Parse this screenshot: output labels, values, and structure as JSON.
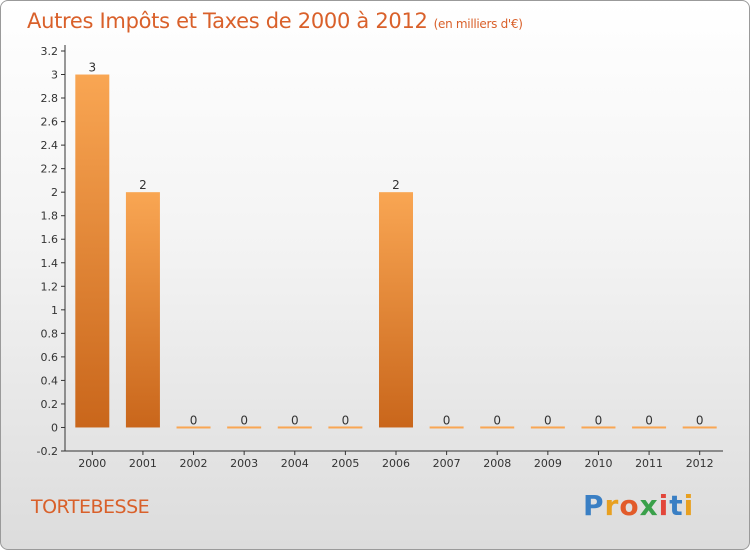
{
  "header": {
    "title": "Autres Impôts et Taxes de 2000 à 2012",
    "subtitle": "(en milliers d'€)"
  },
  "footer": {
    "commune": "TORTEBESSE",
    "logo_text": "Proxiti",
    "logo_colors": [
      "#3a7fc4",
      "#e8a020",
      "#e25b2a",
      "#3aa04a",
      "#e2463a",
      "#3a7fc4",
      "#e8a020"
    ]
  },
  "colors": {
    "bar_top": "#f9a653",
    "bar_bottom": "#c9661b",
    "accent": "#d9602a"
  },
  "chart_data": {
    "type": "bar",
    "categories": [
      "2000",
      "2001",
      "2002",
      "2003",
      "2004",
      "2005",
      "2006",
      "2007",
      "2008",
      "2009",
      "2010",
      "2011",
      "2012"
    ],
    "values": [
      3,
      2,
      0,
      0,
      0,
      0,
      2,
      0,
      0,
      0,
      0,
      0,
      0
    ],
    "data_labels": [
      "3",
      "2",
      "0",
      "0",
      "0",
      "0",
      "2",
      "0",
      "0",
      "0",
      "0",
      "0",
      "0"
    ],
    "yticks": [
      "-0.2",
      "0",
      "0.2",
      "0.4",
      "0.6",
      "0.8",
      "1",
      "1.2",
      "1.4",
      "1.6",
      "1.8",
      "2",
      "2.2",
      "2.4",
      "2.6",
      "2.8",
      "3",
      "3.2"
    ],
    "ylim": [
      -0.2,
      3.2
    ],
    "grid": false,
    "legend": "none"
  }
}
